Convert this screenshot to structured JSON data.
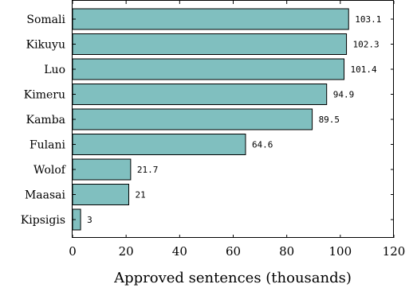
{
  "chart_data": {
    "type": "bar",
    "orientation": "horizontal",
    "categories": [
      "Somali",
      "Kikuyu",
      "Luo",
      "Kimeru",
      "Kamba",
      "Fulani",
      "Wolof",
      "Maasai",
      "Kipsigis"
    ],
    "values": [
      103.1,
      102.3,
      101.4,
      94.9,
      89.5,
      64.6,
      21.7,
      21,
      3
    ],
    "value_labels": [
      "103.1",
      "102.3",
      "101.4",
      "94.9",
      "89.5",
      "64.6",
      "21.7",
      "21",
      "3"
    ],
    "title": "",
    "xlabel": "Approved sentences (thousands)",
    "ylabel": "",
    "xlim": [
      0,
      120
    ],
    "xticks": [
      0,
      20,
      40,
      60,
      80,
      100,
      120
    ],
    "grid": false,
    "bar_color": "#80bfbf"
  }
}
